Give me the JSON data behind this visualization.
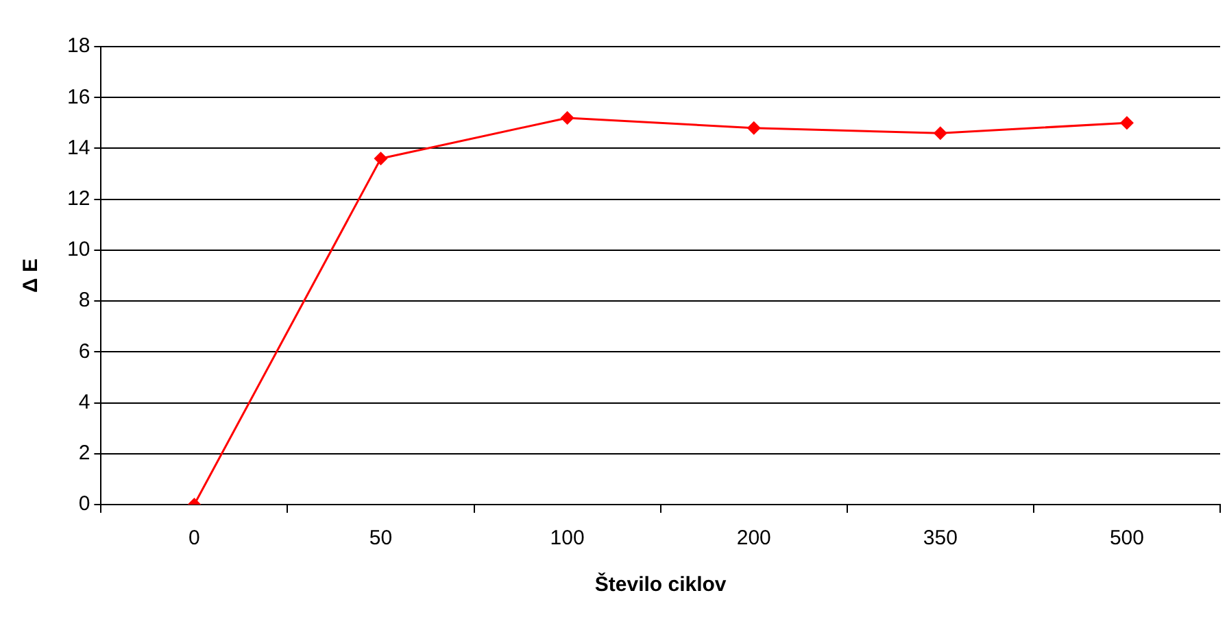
{
  "chart_data": {
    "type": "line",
    "xlabel": "Število ciklov",
    "ylabel": "Δ E",
    "categories": [
      "0",
      "50",
      "100",
      "200",
      "350",
      "500"
    ],
    "series": [
      {
        "color": "#ff0000",
        "values": [
          0,
          13.6,
          15.2,
          14.8,
          14.6,
          15.0
        ]
      }
    ],
    "ylim": [
      0,
      18
    ],
    "yticks": [
      0,
      2,
      4,
      6,
      8,
      10,
      12,
      14,
      16,
      18
    ],
    "grid": "y",
    "legend": false,
    "marker": "diamond",
    "line_style": "solid"
  }
}
